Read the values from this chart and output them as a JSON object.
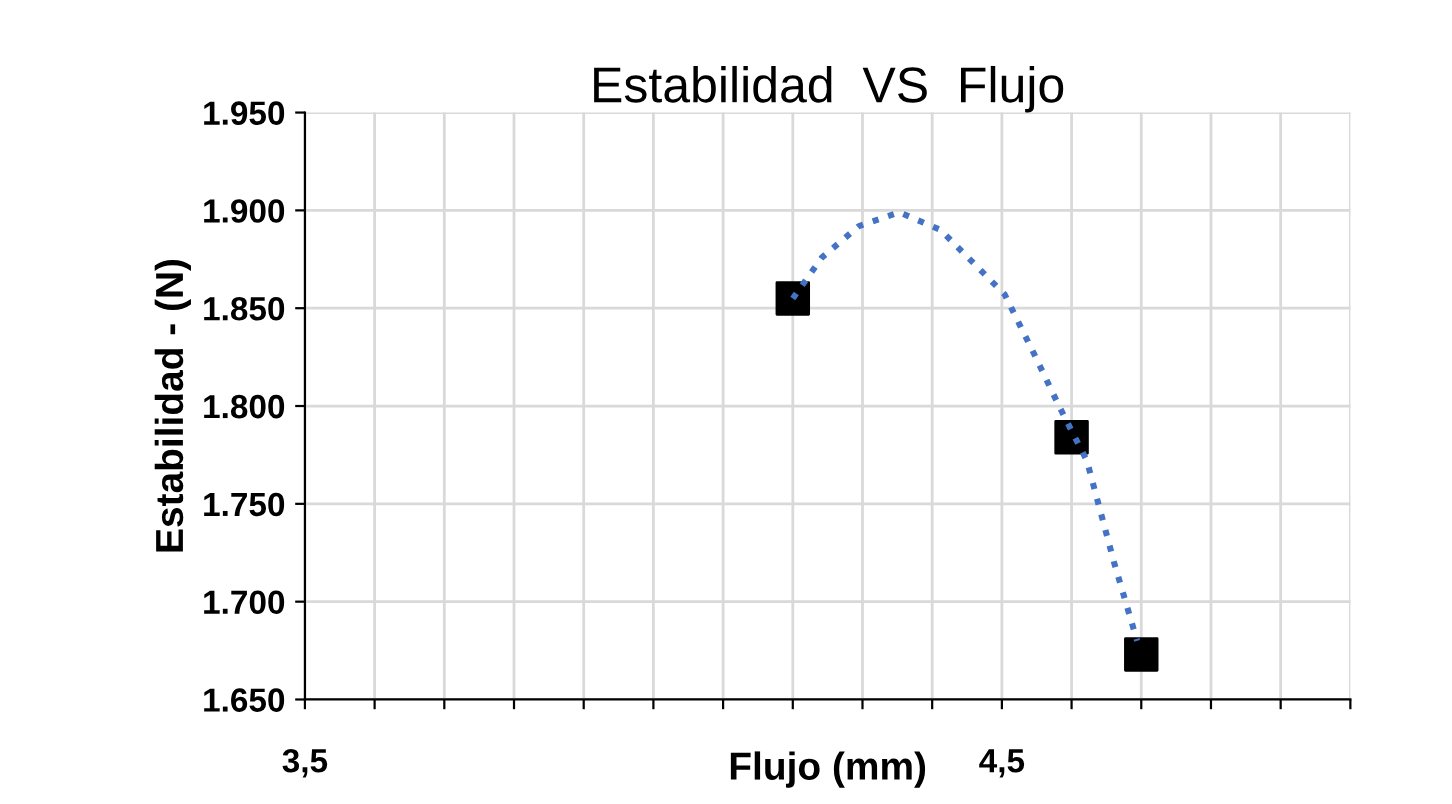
{
  "chart_data": {
    "type": "scatter",
    "title": "Estabilidad  VS  Flujo",
    "xlabel": "Flujo (mm)",
    "ylabel": "Estabilidad - (N)",
    "xlim": [
      3.5,
      5.0
    ],
    "ylim": [
      1650,
      1950
    ],
    "xticks": [
      {
        "value": 3.5,
        "label": "3,5"
      },
      {
        "value": 3.6,
        "label": null
      },
      {
        "value": 3.7,
        "label": null
      },
      {
        "value": 3.8,
        "label": null
      },
      {
        "value": 3.9,
        "label": null
      },
      {
        "value": 4.0,
        "label": null
      },
      {
        "value": 4.1,
        "label": null
      },
      {
        "value": 4.2,
        "label": null
      },
      {
        "value": 4.3,
        "label": null
      },
      {
        "value": 4.4,
        "label": null
      },
      {
        "value": 4.5,
        "label": "4,5"
      },
      {
        "value": 4.6,
        "label": null
      },
      {
        "value": 4.7,
        "label": null
      },
      {
        "value": 4.8,
        "label": null
      },
      {
        "value": 4.9,
        "label": null
      },
      {
        "value": 5.0,
        "label": null
      }
    ],
    "yticks": [
      {
        "value": 1650,
        "label": "1.650"
      },
      {
        "value": 1700,
        "label": "1.700"
      },
      {
        "value": 1750,
        "label": "1.750"
      },
      {
        "value": 1800,
        "label": "1.800"
      },
      {
        "value": 1850,
        "label": "1.850"
      },
      {
        "value": 1900,
        "label": "1.900"
      },
      {
        "value": 1950,
        "label": "1.950"
      }
    ],
    "grid": true,
    "marker": "square",
    "series": [
      {
        "color": "#000000",
        "x": [
          4.2,
          4.6,
          4.7
        ],
        "values": [
          1855,
          1784,
          1673
        ]
      },
      {
        "type": "line",
        "color": "#4472c4",
        "line_style": "dotted",
        "marker": "none",
        "x": [
          4.2,
          4.242,
          4.295,
          4.353,
          4.412,
          4.465,
          4.504,
          4.543,
          4.582,
          4.622,
          4.661,
          4.694
        ],
        "values": [
          1855,
          1876,
          1892,
          1899,
          1890,
          1871,
          1857,
          1829,
          1800,
          1772,
          1720,
          1680
        ]
      }
    ]
  }
}
